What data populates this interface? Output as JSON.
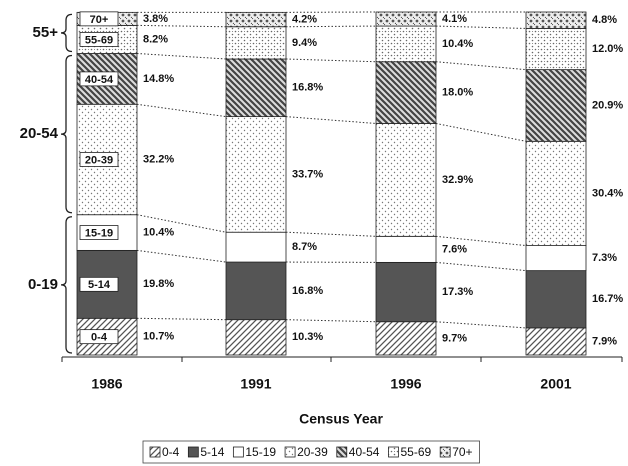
{
  "chart_data": {
    "type": "stacked_bar",
    "x_label": "Census Year",
    "categories": [
      "1986",
      "1991",
      "1996",
      "2001"
    ],
    "ylim": [
      0,
      100
    ],
    "annotations": [
      "0-19",
      "20-54",
      "55+"
    ],
    "series": [
      {
        "name": "0-4",
        "color": "#555555",
        "values": [
          10.7,
          10.3,
          9.7,
          7.9
        ],
        "value_labels": [
          "10.7%",
          "10.3%",
          "9.7%",
          "7.9%"
        ]
      },
      {
        "name": "5-14",
        "color": "#555555",
        "values": [
          19.8,
          16.8,
          17.3,
          16.7
        ],
        "value_labels": [
          "19.8%",
          "16.8%",
          "17.3%",
          "16.7%"
        ]
      },
      {
        "name": "15-19",
        "color": "#ffffff",
        "values": [
          10.4,
          8.7,
          7.6,
          7.3
        ],
        "value_labels": [
          "10.4%",
          "8.7%",
          "7.6%",
          "7.3%"
        ]
      },
      {
        "name": "20-39",
        "color": "#777777",
        "values": [
          32.2,
          33.7,
          32.9,
          30.4
        ],
        "value_labels": [
          "32.2%",
          "33.7%",
          "32.9%",
          "30.4%"
        ]
      },
      {
        "name": "40-54",
        "color": "#444444",
        "values": [
          14.8,
          16.8,
          18.0,
          20.9
        ],
        "value_labels": [
          "14.8%",
          "16.8%",
          "18.0%",
          "20.9%"
        ]
      },
      {
        "name": "55-69",
        "color": "#666666",
        "values": [
          8.2,
          9.4,
          10.4,
          12.0
        ],
        "value_labels": [
          "8.2%",
          "9.4%",
          "10.4%",
          "12.0%"
        ]
      },
      {
        "name": "70+",
        "color": "#555555",
        "values": [
          3.8,
          4.2,
          4.1,
          4.8
        ],
        "value_labels": [
          "3.8%",
          "4.2%",
          "4.1%",
          "4.8%"
        ]
      }
    ]
  }
}
